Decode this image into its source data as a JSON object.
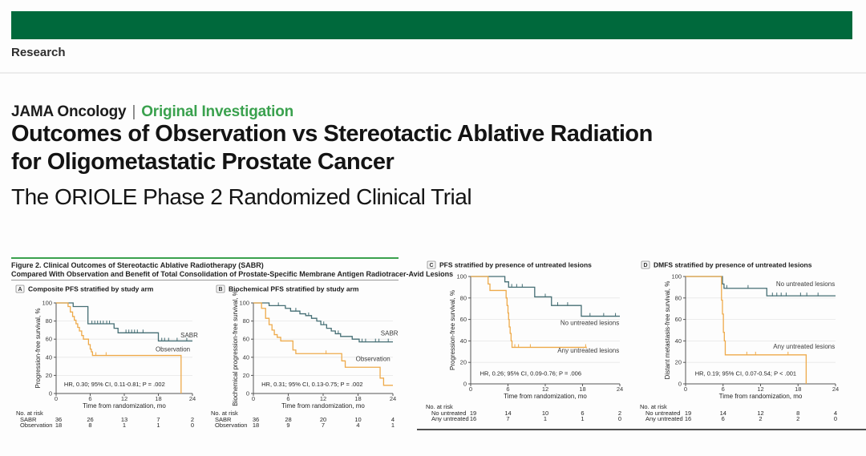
{
  "colors": {
    "brand_green": "#00693c",
    "accent_green": "#3aa14e",
    "sabr_teal": "#456e74",
    "observation_orange": "#eeaa4a"
  },
  "masthead": {
    "section_label": "Research"
  },
  "header": {
    "journal": "JAMA Oncology",
    "divider": "|",
    "category": "Original Investigation",
    "title_line1": "Outcomes of Observation vs Stereotactic Ablative Radiation",
    "title_line2": "for Oligometastatic Prostate Cancer",
    "subtitle": "The ORIOLE Phase 2 Randomized Clinical Trial"
  },
  "figure": {
    "caption_line1": "Figure 2. Clinical Outcomes of Stereotactic Ablative Radiotherapy (SABR)",
    "caption_line2": "Compared With Observation and Benefit of Total Consolidation of Prostate-Specific Membrane Antigen Radiotracer-Avid Lesions"
  },
  "chart_data": [
    {
      "type": "line",
      "letter": "A",
      "title": "Composite PFS stratified by study arm",
      "ylabel": "Progression-free survival, %",
      "xlabel": "Time from randomization, mo",
      "yticks": [
        0,
        20,
        40,
        60,
        80,
        100
      ],
      "xticks": [
        0,
        6,
        12,
        18,
        24
      ],
      "xlim": [
        0,
        24
      ],
      "ylim": [
        0,
        100
      ],
      "annotation": "HR, 0.30; 95% CI, 0.11-0.81; P = .002",
      "annotation_xy": [
        1.4,
        8
      ],
      "series": [
        {
          "name": "SABR",
          "color": "#456e74",
          "label_pos": [
            21.9,
            62
          ],
          "label_anchor": "start",
          "steps": [
            [
              0,
              100
            ],
            [
              3.0,
              96
            ],
            [
              5.6,
              77
            ],
            [
              10.2,
              72
            ],
            [
              10.9,
              67
            ],
            [
              18,
              58
            ]
          ],
          "end": 24,
          "censors": [
            [
              6.3,
              77
            ],
            [
              6.8,
              77
            ],
            [
              7.3,
              77
            ],
            [
              7.8,
              77
            ],
            [
              8.3,
              77
            ],
            [
              8.9,
              77
            ],
            [
              9.4,
              77
            ],
            [
              12.3,
              67
            ],
            [
              12.8,
              67
            ],
            [
              13.3,
              67
            ],
            [
              13.8,
              67
            ],
            [
              14.3,
              67
            ],
            [
              15.3,
              67
            ],
            [
              18.6,
              58
            ],
            [
              19.1,
              58
            ],
            [
              19.8,
              58
            ],
            [
              21.3,
              58
            ],
            [
              23,
              58
            ]
          ]
        },
        {
          "name": "Observation",
          "color": "#eeaa4a",
          "label_pos": [
            17.5,
            46.5
          ],
          "label_anchor": "start",
          "steps": [
            [
              0,
              100
            ],
            [
              2.1,
              96
            ],
            [
              2.5,
              90
            ],
            [
              2.9,
              85
            ],
            [
              3.2,
              81
            ],
            [
              3.5,
              77
            ],
            [
              3.8,
              73
            ],
            [
              4.1,
              69
            ],
            [
              4.5,
              64
            ],
            [
              4.8,
              60
            ],
            [
              5.7,
              54
            ],
            [
              6.0,
              49
            ],
            [
              6.2,
              46
            ],
            [
              6.4,
              42
            ],
            [
              22,
              0
            ]
          ],
          "end": 22,
          "censors": [
            [
              7.0,
              42
            ],
            [
              8.8,
              42
            ]
          ]
        }
      ],
      "risk_table": {
        "header": "No. at risk",
        "rows": [
          {
            "name": "SABR",
            "values": [
              36,
              26,
              13,
              7,
              2
            ]
          },
          {
            "name": "Observation",
            "values": [
              18,
              8,
              1,
              1,
              0
            ]
          }
        ]
      }
    },
    {
      "type": "line",
      "letter": "B",
      "title": "Biochemical PFS stratified by study arm",
      "ylabel": "Biochemical progression-free survival, %",
      "xlabel": "Time from randomization, mo",
      "yticks": [
        0,
        20,
        40,
        60,
        80,
        100
      ],
      "xticks": [
        0,
        6,
        12,
        18,
        24
      ],
      "xlim": [
        0,
        24
      ],
      "ylim": [
        0,
        100
      ],
      "annotation": "HR, 0.31; 95% CI, 0.13-0.75; P = .002",
      "annotation_xy": [
        1.4,
        8
      ],
      "series": [
        {
          "name": "SABR",
          "color": "#456e74",
          "label_pos": [
            21.9,
            64
          ],
          "label_anchor": "start",
          "steps": [
            [
              0,
              100
            ],
            [
              2.7,
              97
            ],
            [
              5.5,
              94
            ],
            [
              6.4,
              91
            ],
            [
              8,
              88
            ],
            [
              9,
              86
            ],
            [
              10,
              83
            ],
            [
              10.9,
              80
            ],
            [
              11.6,
              76
            ],
            [
              12.6,
              72
            ],
            [
              13.4,
              69
            ],
            [
              14.1,
              66
            ],
            [
              15,
              63
            ],
            [
              17,
              60
            ],
            [
              18.2,
              57
            ]
          ],
          "end": 24,
          "censors": [
            [
              4.3,
              97
            ],
            [
              7.3,
              91
            ],
            [
              9.5,
              86
            ],
            [
              12.1,
              76
            ],
            [
              14.6,
              66
            ],
            [
              18.7,
              57
            ],
            [
              19.3,
              57
            ],
            [
              21,
              57
            ],
            [
              21.6,
              57
            ],
            [
              23.2,
              57
            ]
          ]
        },
        {
          "name": "Observation",
          "color": "#eeaa4a",
          "label_pos": [
            17.6,
            36
          ],
          "label_anchor": "start",
          "steps": [
            [
              0,
              100
            ],
            [
              1.4,
              94
            ],
            [
              2.1,
              83
            ],
            [
              2.7,
              76
            ],
            [
              3.2,
              70
            ],
            [
              3.6,
              65
            ],
            [
              4.1,
              62
            ],
            [
              4.7,
              58
            ],
            [
              6.8,
              48
            ],
            [
              7.3,
              44
            ],
            [
              15.2,
              36
            ],
            [
              15.8,
              29
            ],
            [
              21.8,
              17
            ],
            [
              22.4,
              9
            ]
          ],
          "end": 24,
          "censors": [
            [
              12.5,
              44
            ]
          ]
        }
      ],
      "risk_table": {
        "header": "No. at risk",
        "rows": [
          {
            "name": "SABR",
            "values": [
              36,
              28,
              20,
              10,
              4
            ]
          },
          {
            "name": "Observation",
            "values": [
              18,
              9,
              7,
              4,
              1
            ]
          }
        ]
      }
    },
    {
      "type": "line",
      "letter": "C",
      "title": "PFS stratified by presence of untreated lesions",
      "ylabel": "Progression-free survival, %",
      "xlabel": "Time from randomization, mo",
      "yticks": [
        0,
        20,
        40,
        60,
        80,
        100
      ],
      "xticks": [
        0,
        6,
        12,
        18,
        24
      ],
      "xlim": [
        0,
        24
      ],
      "ylim": [
        0,
        100
      ],
      "annotation": "HR, 0.26; 95% CI, 0.09-0.76; P = .006",
      "annotation_xy": [
        1.5,
        8
      ],
      "series": [
        {
          "name": "No untreated lesions",
          "color": "#456e74",
          "label_pos": [
            23.9,
            55
          ],
          "label_anchor": "end",
          "steps": [
            [
              0,
              100
            ],
            [
              5.5,
              95
            ],
            [
              6.1,
              90
            ],
            [
              10.3,
              81
            ],
            [
              13,
              73
            ],
            [
              17.8,
              63
            ]
          ],
          "end": 24,
          "censors": [
            [
              6.6,
              90
            ],
            [
              7.4,
              90
            ],
            [
              8.3,
              90
            ],
            [
              12,
              81
            ],
            [
              14,
              73
            ],
            [
              15.6,
              73
            ],
            [
              19.2,
              63
            ],
            [
              21.4,
              63
            ],
            [
              23.3,
              63
            ]
          ]
        },
        {
          "name": "Any untreated lesions",
          "color": "#eeaa4a",
          "label_pos": [
            23.9,
            29
          ],
          "label_anchor": "end",
          "steps": [
            [
              0,
              100
            ],
            [
              2.8,
              93
            ],
            [
              3.1,
              87
            ],
            [
              5.7,
              80
            ],
            [
              5.85,
              73
            ],
            [
              6.0,
              66
            ],
            [
              6.1,
              60
            ],
            [
              6.2,
              53
            ],
            [
              6.35,
              47
            ],
            [
              6.5,
              40
            ],
            [
              6.65,
              34
            ]
          ],
          "end": 18.7,
          "censors": [
            [
              7.1,
              34
            ],
            [
              7.7,
              34
            ],
            [
              9.6,
              34
            ],
            [
              18.5,
              34
            ]
          ]
        }
      ],
      "risk_table": {
        "header": "No. at risk",
        "rows": [
          {
            "name": "No untreated",
            "values": [
              19,
              14,
              10,
              6,
              2
            ]
          },
          {
            "name": "Any untreated",
            "values": [
              16,
              7,
              1,
              1,
              0
            ]
          }
        ]
      }
    },
    {
      "type": "line",
      "letter": "D",
      "title": "DMFS stratified by presence of untreated lesions",
      "ylabel": "Distant metastasis-free survival, %",
      "xlabel": "Time from randomization, mo",
      "yticks": [
        0,
        20,
        40,
        60,
        80,
        100
      ],
      "xticks": [
        0,
        6,
        12,
        18,
        24
      ],
      "xlim": [
        0,
        24
      ],
      "ylim": [
        0,
        100
      ],
      "annotation": "HR, 0.19; 95% CI, 0.07-0.54; P < .001",
      "annotation_xy": [
        1.5,
        8
      ],
      "series": [
        {
          "name": "No untreated lesions",
          "color": "#456e74",
          "label_pos": [
            23.9,
            91
          ],
          "label_anchor": "end",
          "steps": [
            [
              0,
              100
            ],
            [
              5.9,
              93
            ],
            [
              6.15,
              89
            ],
            [
              13,
              82
            ]
          ],
          "end": 24,
          "censors": [
            [
              6.6,
              89
            ],
            [
              10,
              89
            ],
            [
              13.9,
              82
            ],
            [
              14.6,
              82
            ],
            [
              15.3,
              82
            ],
            [
              16.1,
              82
            ],
            [
              18.4,
              82
            ],
            [
              19.4,
              82
            ],
            [
              21.2,
              82
            ]
          ]
        },
        {
          "name": "Any untreated lesions",
          "color": "#eeaa4a",
          "label_pos": [
            23.9,
            33
          ],
          "label_anchor": "end",
          "steps": [
            [
              0,
              100
            ],
            [
              5.75,
              78
            ],
            [
              5.9,
              65
            ],
            [
              6.05,
              48
            ],
            [
              6.2,
              40
            ],
            [
              6.35,
              27
            ],
            [
              19.3,
              0
            ]
          ],
          "end": 19.3,
          "censors": [
            [
              9.8,
              27
            ],
            [
              11.2,
              27
            ],
            [
              16.4,
              27
            ]
          ]
        }
      ],
      "risk_table": {
        "header": "No. at risk",
        "rows": [
          {
            "name": "No untreated",
            "values": [
              19,
              14,
              12,
              8,
              4
            ]
          },
          {
            "name": "Any untreated",
            "values": [
              16,
              6,
              2,
              2,
              0
            ]
          }
        ]
      }
    }
  ]
}
